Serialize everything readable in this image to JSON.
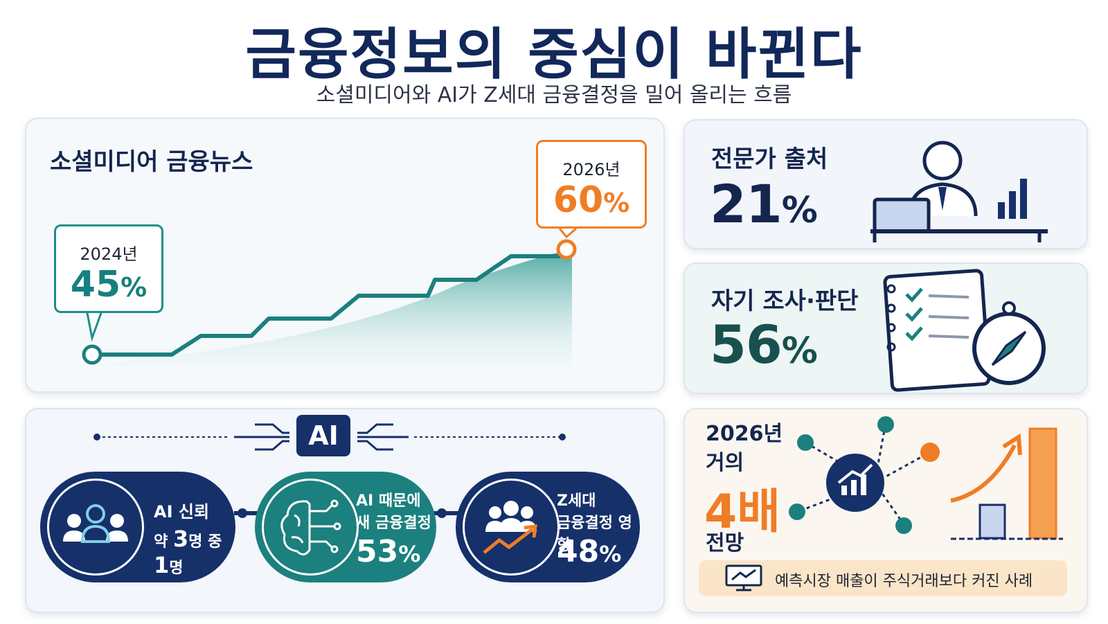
{
  "header": {
    "title": "금융정보의 중심이 바뀐다",
    "subtitle": "소셜미디어와 AI가 Z세대 금융결정을 밀어 올리는 흐름"
  },
  "colors": {
    "navy": "#16306a",
    "teal": "#1b807e",
    "orange": "#ef7d26",
    "light_blue": "#c9d6ef"
  },
  "social_card": {
    "title": "소셜미디어 금융뉴스",
    "start": {
      "year": "2024년",
      "value": "45",
      "unit": "%"
    },
    "end": {
      "year": "2026년",
      "value": "60",
      "unit": "%"
    }
  },
  "chart_data": {
    "type": "line",
    "title": "소셜미디어 금융뉴스",
    "x": [
      "2024년",
      "2026년"
    ],
    "series": [
      {
        "values": [
          45,
          60
        ]
      }
    ],
    "shape": "step-up line with shaded area beneath",
    "labels": [
      {
        "x": "2024년",
        "text": "45%"
      },
      {
        "x": "2026년",
        "text": "60%"
      }
    ]
  },
  "expert_card": {
    "title": "전문가 출처",
    "value": "21",
    "unit": "%",
    "icon": "expert-at-desk-icon"
  },
  "self_card": {
    "title": "자기 조사·판단",
    "value": "56",
    "unit": "%",
    "icon": "checklist-compass-icon"
  },
  "ai_card": {
    "badge": "AI",
    "trust": {
      "line1": "AI 신뢰",
      "pre": "약 ",
      "n1": "3",
      "mid": "명 중 ",
      "n2": "1",
      "post": "명",
      "icon": "people-group-icon"
    },
    "new_decision": {
      "line1": "AI 때문에",
      "line2": "새 금융결정",
      "value": "53",
      "unit": "%",
      "icon": "brain-circuit-icon"
    },
    "genz": {
      "line1": "Z세대",
      "line2": "금융결정 영향",
      "value": "48",
      "unit": "%",
      "icon": "people-trend-icon"
    }
  },
  "fourx_card": {
    "line1": "2026년",
    "line2": "거의",
    "big": "4배",
    "line3": "전망",
    "note": "예측시장 매출이 주식거래보다 커진 사례",
    "icons": [
      "network-chart-icon",
      "bar-growth-icon",
      "monitor-chart-icon"
    ]
  }
}
